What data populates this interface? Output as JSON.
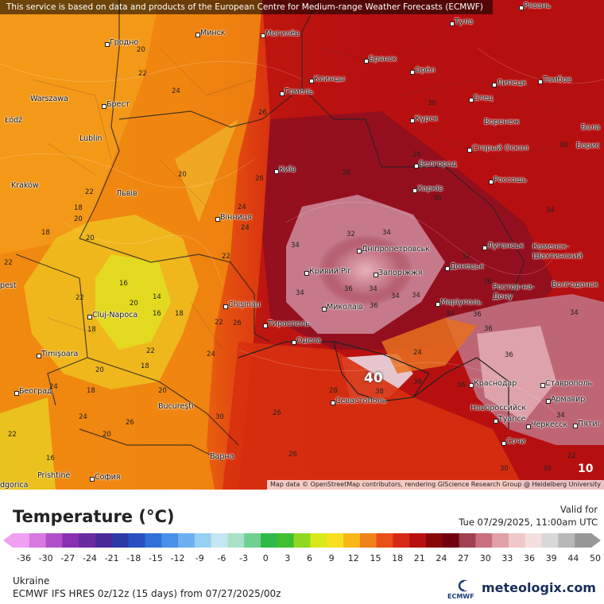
{
  "banner": "This service is based on data and products of the European Centre for Medium-range Weather Forecasts (ECMWF)",
  "attribution": "Map data © OpenStreetMap contributors, rendering GIScience Research Group @ Heidelberg University",
  "cities": [
    {
      "name": "Рязань"
    },
    {
      "name": "Тула"
    },
    {
      "name": "Гродно"
    },
    {
      "name": "Минск"
    },
    {
      "name": "Могилёв"
    },
    {
      "name": "Брянск"
    },
    {
      "name": "Орёл"
    },
    {
      "name": "Липецк"
    },
    {
      "name": "Тамбов"
    },
    {
      "name": "Warszawa"
    },
    {
      "name": "Брест"
    },
    {
      "name": "Гомель"
    },
    {
      "name": "Клинцы"
    },
    {
      "name": "Елец"
    },
    {
      "name": "Łódź"
    },
    {
      "name": "Курск"
    },
    {
      "name": "Воронеж"
    },
    {
      "name": "Бала"
    },
    {
      "name": "Lublin"
    },
    {
      "name": "Старый Оскол"
    },
    {
      "name": "Борис"
    },
    {
      "name": "Київ"
    },
    {
      "name": "Белгород"
    },
    {
      "name": "Kraków"
    },
    {
      "name": "Львів"
    },
    {
      "name": "Харків"
    },
    {
      "name": "Россошь"
    },
    {
      "name": "Вінниця"
    },
    {
      "name": "Луганськ"
    },
    {
      "name": "Каменск-Шахтинский"
    },
    {
      "name": "Дніпропетровськ"
    },
    {
      "name": "Кривий Ріг"
    },
    {
      "name": "Запоріжжя"
    },
    {
      "name": "Донецьк"
    },
    {
      "name": "Chişinău"
    },
    {
      "name": "Ростов-на-Дону"
    },
    {
      "name": "Волгодонск"
    },
    {
      "name": "Cluj-Napoca"
    },
    {
      "name": "Миколаїв"
    },
    {
      "name": "Маріуполь"
    },
    {
      "name": "Тирасполь"
    },
    {
      "name": "Одеса"
    },
    {
      "name": "Timişoara"
    },
    {
      "name": "Краснодар"
    },
    {
      "name": "Ставрополь"
    },
    {
      "name": "Београд"
    },
    {
      "name": "Севастополь"
    },
    {
      "name": "Армавир"
    },
    {
      "name": "Bucureşti"
    },
    {
      "name": "Новороссийск"
    },
    {
      "name": "Туапсе"
    },
    {
      "name": "Черкесск"
    },
    {
      "name": "Пятиг"
    },
    {
      "name": "Сочи"
    },
    {
      "name": "Варна"
    },
    {
      "name": "Prishtinë"
    },
    {
      "name": "София"
    },
    {
      "name": "pest"
    },
    {
      "name": "dgorica"
    }
  ],
  "temperature_labels": [
    "20",
    "22",
    "24",
    "26",
    "20",
    "22",
    "18",
    "20",
    "20",
    "22",
    "24",
    "18",
    "22",
    "16",
    "14",
    "22",
    "20",
    "16",
    "18",
    "22",
    "26",
    "24",
    "22",
    "18",
    "20",
    "24",
    "18",
    "20",
    "18",
    "24",
    "22",
    "16",
    "20",
    "26",
    "30",
    "26",
    "26",
    "28",
    "34",
    "34",
    "34",
    "36",
    "34",
    "36",
    "24",
    "34",
    "32",
    "34",
    "36",
    "36",
    "38",
    "30",
    "26",
    "24",
    "36",
    "36",
    "34",
    "34",
    "36",
    "34",
    "26",
    "22",
    "32",
    "28",
    "30",
    "30",
    "34",
    "36",
    "30",
    "30",
    "10"
  ],
  "peak_label": "40",
  "legend": {
    "title": "Temperature (°C)",
    "valid_label": "Valid for",
    "valid_time": "Tue 07/29/2025, 11:00am UTC",
    "ticks": [
      "-36",
      "-30",
      "-27",
      "-24",
      "-21",
      "-18",
      "-15",
      "-12",
      "-9",
      "-6",
      "-3",
      "0",
      "3",
      "6",
      "9",
      "12",
      "15",
      "18",
      "21",
      "24",
      "27",
      "30",
      "33",
      "36",
      "39",
      "44",
      "50"
    ],
    "colors": [
      "#f0a0f0",
      "#d878e0",
      "#b050c8",
      "#8830b0",
      "#6a2aa0",
      "#4a2a98",
      "#2c3aa8",
      "#2850c0",
      "#3070d8",
      "#4a90e8",
      "#6cb0f0",
      "#98cff4",
      "#c4e6f4",
      "#a8e0c8",
      "#70d090",
      "#30b848",
      "#40c030",
      "#90d820",
      "#d8e818",
      "#f8e020",
      "#f8b818",
      "#f08018",
      "#e85018",
      "#d82818",
      "#b81010",
      "#880808",
      "#700010",
      "#a04050",
      "#c87080",
      "#e0a0a8",
      "#f0c8c8",
      "#f4dede",
      "#d8d8d8",
      "#b8b8b8",
      "#989898"
    ],
    "region": "Ukraine",
    "model": "ECMWF IFS HRES 0z/12z (15 days) from 07/27/2025/00z",
    "ecmwf_text": "ECMWF",
    "brand": "meteologix.com",
    "brand_color": "#1a2d5a"
  }
}
